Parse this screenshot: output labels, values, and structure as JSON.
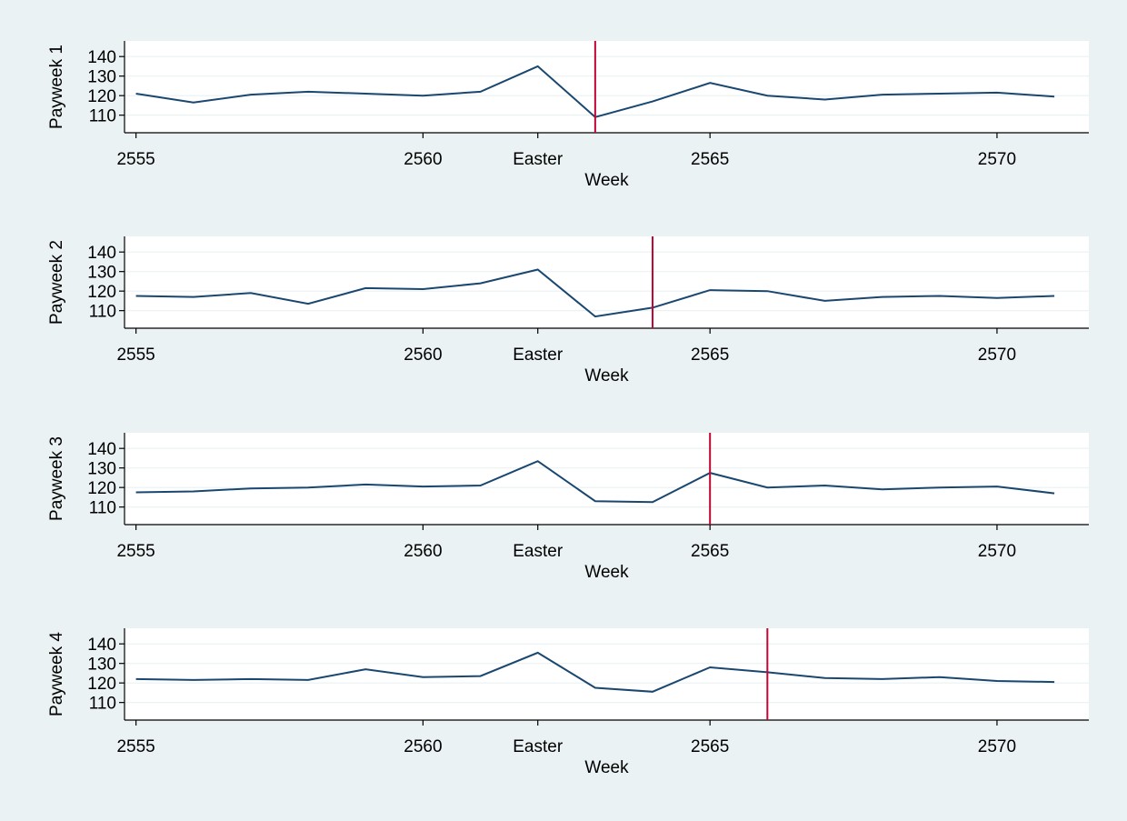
{
  "colors": {
    "background": "#eaf2f3",
    "plot_background": "#ffffff",
    "series": "#1a476f",
    "marker": "#c10534"
  },
  "chart_data": [
    {
      "type": "line",
      "ylabel": "Payweek 1",
      "xlabel": "Week",
      "x": [
        2555,
        2556,
        2557,
        2558,
        2559,
        2560,
        2561,
        2562,
        2563,
        2564,
        2565,
        2566,
        2567,
        2568,
        2569,
        2570,
        2571
      ],
      "series": [
        {
          "values": [
            121,
            116.5,
            120.5,
            122,
            121,
            120,
            122,
            135,
            109,
            117,
            126.5,
            120,
            118,
            120.5,
            121,
            121.5,
            119.5
          ]
        }
      ],
      "vline": 2563,
      "yticks": [
        110,
        120,
        130,
        140
      ],
      "ylim": [
        101,
        148
      ],
      "xticks": [
        {
          "value": 2555,
          "label": "2555"
        },
        {
          "value": 2560,
          "label": "2560"
        },
        {
          "value": 2562,
          "label": "Easter"
        },
        {
          "value": 2565,
          "label": "2565"
        },
        {
          "value": 2570,
          "label": "2570"
        }
      ],
      "xlim": [
        2554.8,
        2571.6
      ],
      "grid": true
    },
    {
      "type": "line",
      "ylabel": "Payweek 2",
      "xlabel": "Week",
      "x": [
        2555,
        2556,
        2557,
        2558,
        2559,
        2560,
        2561,
        2562,
        2563,
        2564,
        2565,
        2566,
        2567,
        2568,
        2569,
        2570,
        2571
      ],
      "series": [
        {
          "values": [
            117.5,
            117,
            119,
            113.5,
            121.5,
            121,
            124,
            131,
            107,
            111.5,
            120.5,
            120,
            115,
            117,
            117.5,
            116.5,
            117.5
          ]
        }
      ],
      "vline": 2564,
      "yticks": [
        110,
        120,
        130,
        140
      ],
      "ylim": [
        101,
        148
      ],
      "xticks": [
        {
          "value": 2555,
          "label": "2555"
        },
        {
          "value": 2560,
          "label": "2560"
        },
        {
          "value": 2562,
          "label": "Easter"
        },
        {
          "value": 2565,
          "label": "2565"
        },
        {
          "value": 2570,
          "label": "2570"
        }
      ],
      "xlim": [
        2554.8,
        2571.6
      ],
      "grid": true
    },
    {
      "type": "line",
      "ylabel": "Payweek 3",
      "xlabel": "Week",
      "x": [
        2555,
        2556,
        2557,
        2558,
        2559,
        2560,
        2561,
        2562,
        2563,
        2564,
        2565,
        2566,
        2567,
        2568,
        2569,
        2570,
        2571
      ],
      "series": [
        {
          "values": [
            117.5,
            118,
            119.5,
            120,
            121.5,
            120.5,
            121,
            133.5,
            113,
            112.5,
            127.5,
            120,
            121,
            119,
            120,
            120.5,
            117
          ]
        }
      ],
      "vline": 2565,
      "yticks": [
        110,
        120,
        130,
        140
      ],
      "ylim": [
        101,
        148
      ],
      "xticks": [
        {
          "value": 2555,
          "label": "2555"
        },
        {
          "value": 2560,
          "label": "2560"
        },
        {
          "value": 2562,
          "label": "Easter"
        },
        {
          "value": 2565,
          "label": "2565"
        },
        {
          "value": 2570,
          "label": "2570"
        }
      ],
      "xlim": [
        2554.8,
        2571.6
      ],
      "grid": true
    },
    {
      "type": "line",
      "ylabel": "Payweek 4",
      "xlabel": "Week",
      "x": [
        2555,
        2556,
        2557,
        2558,
        2559,
        2560,
        2561,
        2562,
        2563,
        2564,
        2565,
        2566,
        2567,
        2568,
        2569,
        2570,
        2571
      ],
      "series": [
        {
          "values": [
            122,
            121.5,
            122,
            121.5,
            127,
            123,
            123.5,
            135.5,
            117.5,
            115.5,
            128,
            125.5,
            122.5,
            122,
            123,
            121,
            120.5
          ]
        }
      ],
      "vline": 2566,
      "yticks": [
        110,
        120,
        130,
        140
      ],
      "ylim": [
        101,
        148
      ],
      "xticks": [
        {
          "value": 2555,
          "label": "2555"
        },
        {
          "value": 2560,
          "label": "2560"
        },
        {
          "value": 2562,
          "label": "Easter"
        },
        {
          "value": 2565,
          "label": "2565"
        },
        {
          "value": 2570,
          "label": "2570"
        }
      ],
      "xlim": [
        2554.8,
        2571.6
      ],
      "grid": true
    }
  ]
}
